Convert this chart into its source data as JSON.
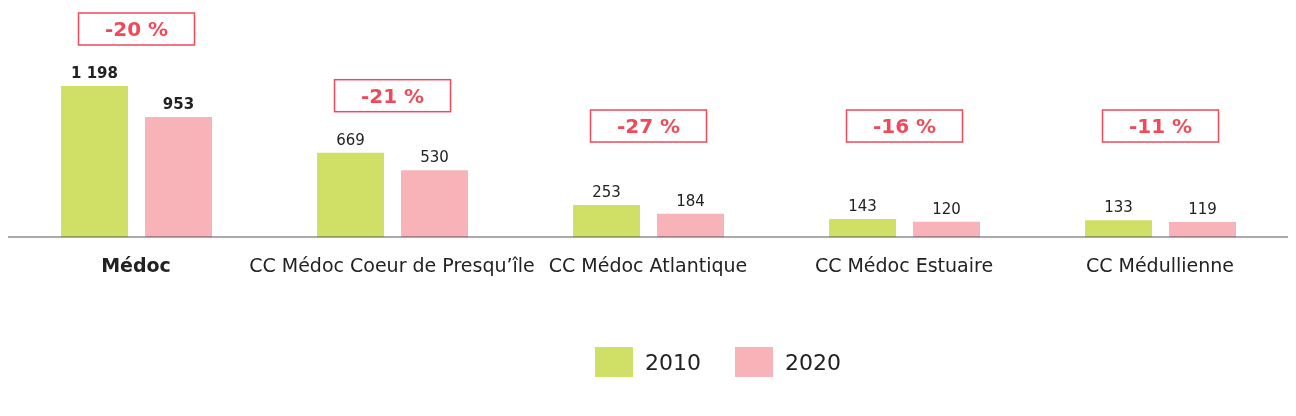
{
  "chart_data": {
    "type": "bar",
    "categories": [
      "Médoc",
      "CC Médoc Coeur de Presqu’île",
      "CC Médoc Atlantique",
      "CC Médoc Estuaire",
      "CC Médullienne"
    ],
    "series": [
      {
        "name": "2010",
        "color": "#d0df66",
        "values": [
          1198,
          669,
          253,
          143,
          133
        ],
        "value_labels": [
          "1 198",
          "669",
          "253",
          "143",
          "133"
        ]
      },
      {
        "name": "2020",
        "color": "#f8b3b8",
        "values": [
          953,
          530,
          184,
          120,
          119
        ],
        "value_labels": [
          "953",
          "530",
          "184",
          "120",
          "119"
        ]
      }
    ],
    "annotations": [
      "-20 %",
      "-21 %",
      "-27 %",
      "-16 %",
      "-11 %"
    ],
    "grid": false,
    "legend": "bottom"
  }
}
